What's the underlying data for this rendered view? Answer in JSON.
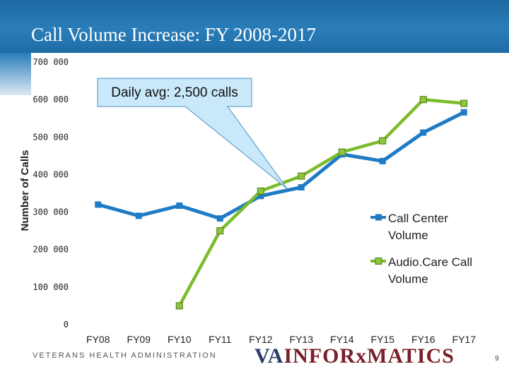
{
  "title": "Call Volume Increase: FY 2008-2017",
  "footer": "VETERANS HEALTH ADMINISTRATION",
  "logo": {
    "prefix": "VA",
    "text": "INFORxMATICS"
  },
  "page_number": "9",
  "callout": "Daily avg: 2,500 calls",
  "colors": {
    "call_center": "#1f7bc4",
    "audiocare": "#7cbb2b",
    "banner": "#1f6ca6",
    "callout_fill": "#c9e8fa"
  },
  "chart_data": {
    "type": "line",
    "ylabel": "Number of Calls",
    "ylim": [
      0,
      700000
    ],
    "y_ticks": [
      0,
      100000,
      200000,
      300000,
      400000,
      500000,
      600000,
      700000
    ],
    "y_tick_labels": [
      "0",
      "100 000",
      "200 000",
      "300 000",
      "400 000",
      "500 000",
      "600 000",
      "700 000"
    ],
    "categories": [
      "FY08",
      "FY09",
      "FY10",
      "FY11",
      "FY12",
      "FY13",
      "FY14",
      "FY15",
      "FY16",
      "FY17"
    ],
    "legend_position": "right",
    "grid": false,
    "series": [
      {
        "name": "Call Center Volume",
        "legend_lines": [
          "Call Center",
          "Volume"
        ],
        "marker": "square",
        "values": [
          320000,
          290000,
          317000,
          283000,
          343000,
          366000,
          454000,
          436000,
          512000,
          566000
        ]
      },
      {
        "name": "Audio.Care Call Volume",
        "legend_lines": [
          "Audio.Care Call",
          "Volume"
        ],
        "marker": "square",
        "values": [
          null,
          null,
          50000,
          250000,
          356000,
          396000,
          460000,
          490000,
          600000,
          590000
        ]
      }
    ]
  }
}
